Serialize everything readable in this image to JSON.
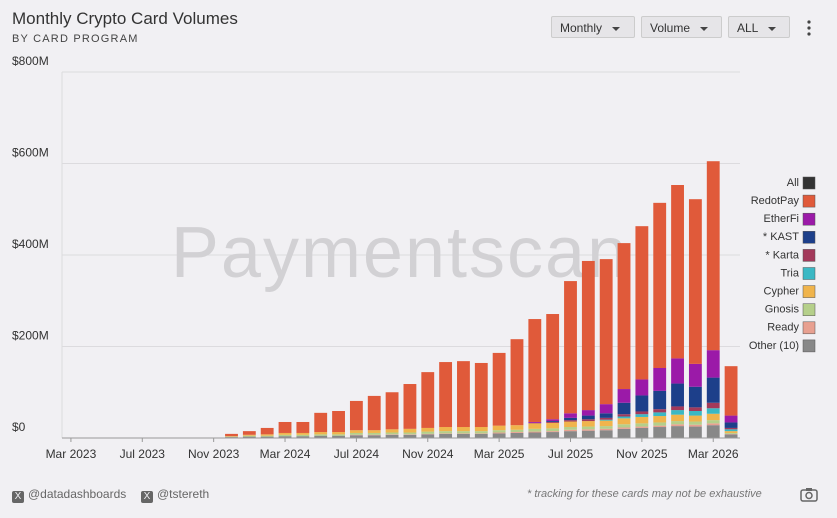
{
  "controls": [
    "Monthly",
    "Volume",
    "ALL"
  ],
  "footer": {
    "handles": [
      "@datadashboards",
      "@tstereth"
    ],
    "note": "* tracking for these cards may not be exhaustive"
  },
  "chart_data": {
    "type": "stacked_bar",
    "title": "Monthly Crypto Card Volumes",
    "subtitle": "BY CARD PROGRAM",
    "watermark": "Paymentscan",
    "categories": [
      "Mar 2023",
      null,
      null,
      null,
      "Jul 2023",
      null,
      null,
      null,
      "Nov 2023",
      null,
      null,
      null,
      "Mar 2024",
      null,
      null,
      null,
      "Jul 2024",
      null,
      null,
      null,
      "Nov 2024",
      null,
      null,
      null,
      "Mar 2025",
      null,
      null,
      null,
      "Jul 2025",
      null,
      null,
      null,
      "Nov 2025",
      null,
      null,
      null,
      "Mar 2026",
      null
    ],
    "ylim": [
      0,
      800
    ],
    "yticks": [
      {
        "value": 0,
        "label": "$0"
      },
      {
        "value": 200,
        "label": "$200M"
      },
      {
        "value": 400,
        "label": "$400M"
      },
      {
        "value": 600,
        "label": "$600M"
      },
      {
        "value": 800,
        "label": "$800M"
      }
    ],
    "grid": true,
    "legend_position": "right",
    "legend_toggle": {
      "name": "All",
      "color": "#333333"
    },
    "series": [
      {
        "name": "RedotPay",
        "color": "#e05a3a",
        "values": [
          0,
          0,
          0,
          0,
          0,
          0,
          0,
          0,
          0,
          5,
          8,
          14,
          24,
          24,
          42,
          46,
          64,
          75,
          81,
          98,
          122,
          142,
          144,
          140,
          159,
          188,
          225,
          230,
          289,
          326,
          317,
          319,
          335,
          361,
          379,
          360,
          413,
          108
        ]
      },
      {
        "name": "EtherFi",
        "color": "#9b1aa8",
        "values": [
          0,
          0,
          0,
          0,
          0,
          0,
          0,
          0,
          0,
          0,
          0,
          0,
          0,
          0,
          0,
          0,
          0,
          0,
          0,
          0,
          0,
          0,
          0,
          0,
          0,
          0,
          2,
          4,
          10,
          12,
          20,
          30,
          35,
          50,
          55,
          50,
          60,
          15
        ]
      },
      {
        "name": "* KAST",
        "color": "#1d3f8a",
        "values": [
          0,
          0,
          0,
          0,
          0,
          0,
          0,
          0,
          0,
          0,
          0,
          0,
          0,
          0,
          0,
          0,
          0,
          0,
          0,
          0,
          0,
          0,
          0,
          0,
          0,
          0,
          0,
          2,
          5,
          8,
          10,
          25,
          35,
          40,
          50,
          45,
          55,
          12
        ]
      },
      {
        "name": "* Karta",
        "color": "#a3395a",
        "values": [
          0,
          0,
          0,
          0,
          0,
          0,
          0,
          0,
          0,
          0,
          0,
          0,
          0,
          0,
          0,
          0,
          0,
          0,
          0,
          0,
          0,
          0,
          0,
          0,
          0,
          0,
          1,
          2,
          3,
          4,
          4,
          5,
          6,
          7,
          8,
          8,
          12,
          3
        ]
      },
      {
        "name": "Tria",
        "color": "#3bb8c4",
        "values": [
          0,
          0,
          0,
          0,
          0,
          0,
          0,
          0,
          0,
          0,
          0,
          0,
          0,
          0,
          0,
          0,
          0,
          0,
          0,
          0,
          0,
          0,
          0,
          0,
          0,
          0,
          0,
          0,
          0,
          0,
          2,
          4,
          6,
          8,
          10,
          10,
          12,
          4
        ]
      },
      {
        "name": "Cypher",
        "color": "#f0b44c",
        "values": [
          0,
          0,
          0,
          0,
          0,
          0,
          0,
          0,
          0,
          1,
          2,
          3,
          4,
          4,
          5,
          5,
          6,
          6,
          7,
          8,
          8,
          9,
          9,
          9,
          10,
          10,
          12,
          12,
          12,
          12,
          12,
          13,
          14,
          14,
          14,
          13,
          14,
          4
        ]
      },
      {
        "name": "Gnosis",
        "color": "#b5cf8a",
        "values": [
          0.5,
          0.5,
          0.5,
          0.5,
          0.5,
          0.5,
          0.5,
          0.5,
          0.5,
          1,
          2,
          2,
          3,
          3,
          3,
          3,
          4,
          4,
          4,
          4,
          5,
          5,
          5,
          5,
          5,
          5,
          6,
          6,
          6,
          6,
          6,
          7,
          7,
          7,
          7,
          7,
          7,
          2
        ]
      },
      {
        "name": "Ready",
        "color": "#e8a090",
        "values": [
          0,
          0,
          0,
          0,
          0,
          0,
          0,
          0,
          0,
          0,
          0,
          0,
          0,
          0,
          0,
          0,
          1,
          1,
          1,
          1,
          1,
          1,
          1,
          1,
          2,
          2,
          2,
          2,
          3,
          3,
          3,
          3,
          3,
          3,
          4,
          4,
          4,
          1
        ]
      },
      {
        "name": "Other (10)",
        "color": "#888888",
        "values": [
          0.5,
          0.5,
          0.5,
          0.3,
          0.5,
          0.5,
          0.5,
          0.5,
          0.5,
          2,
          3,
          3,
          4,
          4,
          5,
          5,
          6,
          6,
          7,
          7,
          8,
          9,
          9,
          9,
          10,
          11,
          12,
          13,
          15,
          16,
          17,
          20,
          22,
          24,
          26,
          25,
          28,
          8
        ]
      }
    ]
  }
}
